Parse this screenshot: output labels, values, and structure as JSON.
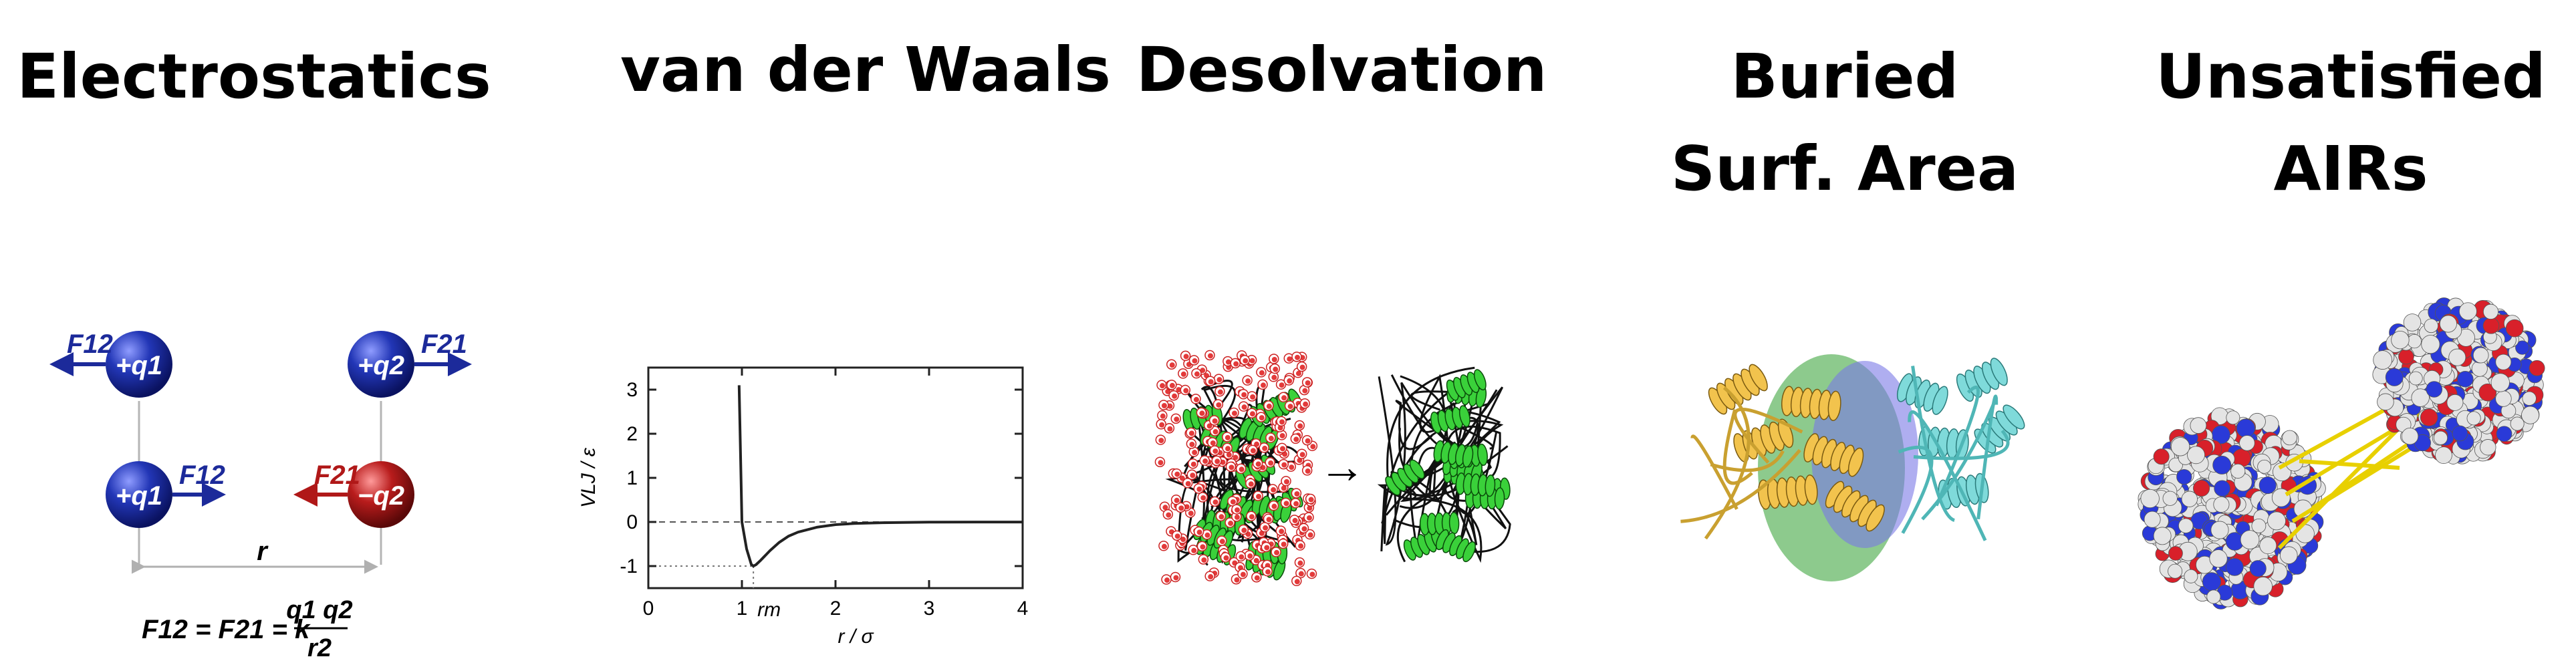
{
  "panels": [
    {
      "id": "electrostatics",
      "title_lines": [
        "Electrostatics"
      ]
    },
    {
      "id": "vdw",
      "title_lines": [
        "van der Waals"
      ]
    },
    {
      "id": "desolvation",
      "title_lines": [
        "Desolvation"
      ]
    },
    {
      "id": "bsa",
      "title_lines": [
        "Buried",
        "Surf. Area"
      ]
    },
    {
      "id": "airs",
      "title_lines": [
        "Unsatisfied",
        "AIRs"
      ]
    }
  ],
  "electrostatics": {
    "charge_plus_1": "+q1",
    "charge_plus_2": "+q2",
    "charge_minus_2": "−q2",
    "force_12": "F12",
    "force_21": "F21",
    "distance": "r",
    "formula_lhs": "F12 = F21 = k",
    "formula_num": "q1 q2",
    "formula_den": "r2",
    "colors": {
      "positive": "#1c2a9a",
      "negative": "#b01818",
      "attractive_arrow": "#b01818"
    }
  },
  "chart_data": {
    "type": "line",
    "title": "",
    "xlabel": "r / σ",
    "ylabel": "VLJ / ε",
    "xlim": [
      0,
      4
    ],
    "ylim": [
      -1.5,
      3.5
    ],
    "xticks": [
      0,
      1,
      2,
      3,
      4
    ],
    "yticks": [
      -1,
      0,
      1,
      2,
      3
    ],
    "annotation": "rm",
    "r_min": 1.12246,
    "well_depth": -1,
    "series": [
      {
        "x": [
          0.97,
          1.0,
          1.05,
          1.1,
          1.122,
          1.15,
          1.2,
          1.3,
          1.4,
          1.5,
          1.6,
          1.8,
          2.0,
          2.2,
          2.5,
          3.0,
          3.5,
          4.0
        ],
        "y": [
          3.1,
          0.0,
          -0.61,
          -0.96,
          -1.0,
          -0.97,
          -0.87,
          -0.65,
          -0.46,
          -0.32,
          -0.23,
          -0.12,
          -0.06,
          -0.035,
          -0.016,
          -0.005,
          -0.002,
          -0.001
        ]
      }
    ]
  },
  "desolvation": {
    "arrow": "→",
    "colors": {
      "helix": "#3ad13a",
      "water_oxygen": "#e23a3a",
      "water_rim": "#ffffff"
    }
  },
  "bsa": {
    "colors": {
      "protein_a": "#f2c34d",
      "protein_b": "#7fdada",
      "interface_green": "#2f9f2f",
      "interface_blue": "#7a78e6"
    }
  },
  "airs": {
    "colors": {
      "restraint": "#e8d000",
      "carbon": "#e4e4e4",
      "oxygen": "#d8202a",
      "nitrogen": "#2a3ad8"
    }
  }
}
